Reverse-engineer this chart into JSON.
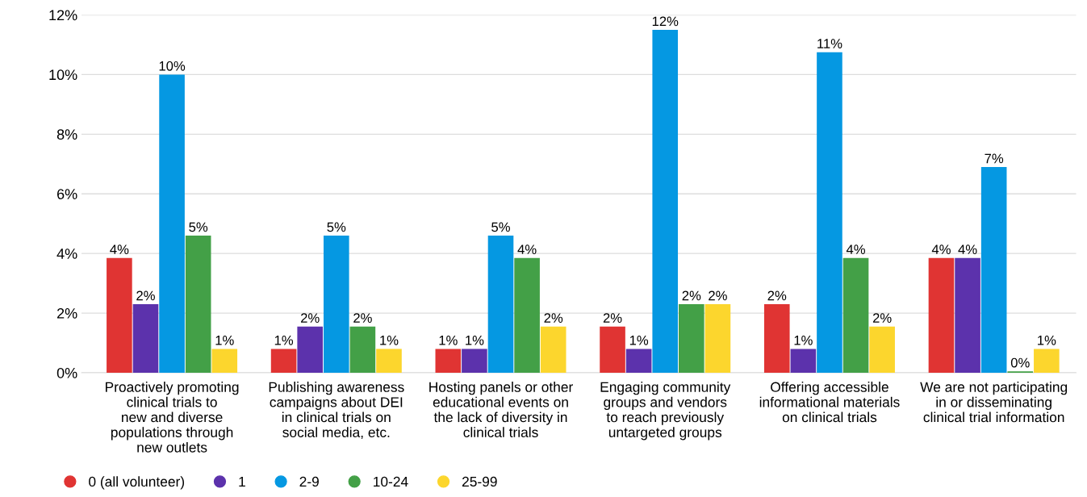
{
  "chart_data": {
    "type": "bar",
    "categories": [
      "Proactively promoting\nclinical trials to\nnew and diverse\npopulations through\nnew outlets",
      "Publishing awareness\ncampaigns about DEI\nin clinical trials on\nsocial media, etc.",
      "Hosting panels or other\neducational events on\nthe lack of diversity in\nclinical trials",
      "Engaging community\ngroups and vendors\nto reach previously\nuntargeted groups",
      "Offering accessible\ninformational materials\non clinical trials",
      "We are not participating\nin or disseminating\nclinical trial information"
    ],
    "series": [
      {
        "name": "0 (all volunteer)",
        "color": "#e03433",
        "values": [
          3.85,
          0.8,
          0.8,
          1.55,
          2.3,
          3.85
        ],
        "value_labels": [
          "4%",
          "1%",
          "1%",
          "2%",
          "2%",
          "4%"
        ]
      },
      {
        "name": "1",
        "color": "#5c32ac",
        "values": [
          2.3,
          1.55,
          0.8,
          0.8,
          0.8,
          3.85
        ],
        "value_labels": [
          "2%",
          "2%",
          "1%",
          "1%",
          "1%",
          "4%"
        ]
      },
      {
        "name": "2-9",
        "color": "#0598e2",
        "values": [
          10.0,
          4.6,
          4.6,
          11.5,
          10.75,
          6.9
        ],
        "value_labels": [
          "10%",
          "5%",
          "5%",
          "12%",
          "11%",
          "7%"
        ]
      },
      {
        "name": "10-24",
        "color": "#43a047",
        "values": [
          4.6,
          1.55,
          3.85,
          2.3,
          3.85,
          0.05
        ],
        "value_labels": [
          "5%",
          "2%",
          "4%",
          "2%",
          "4%",
          "0%"
        ]
      },
      {
        "name": "25-99",
        "color": "#fcd62d",
        "values": [
          0.8,
          0.8,
          1.55,
          2.3,
          1.55,
          0.8
        ],
        "value_labels": [
          "1%",
          "1%",
          "2%",
          "2%",
          "2%",
          "1%"
        ]
      }
    ],
    "ylim": [
      0,
      12
    ],
    "yticks": [
      {
        "value": 0,
        "label": "0%"
      },
      {
        "value": 2,
        "label": "2%"
      },
      {
        "value": 4,
        "label": "4%"
      },
      {
        "value": 6,
        "label": "6%"
      },
      {
        "value": 8,
        "label": "8%"
      },
      {
        "value": 10,
        "label": "10%"
      },
      {
        "value": 12,
        "label": "12%"
      }
    ],
    "grid": "y",
    "legend": "bottom left"
  }
}
